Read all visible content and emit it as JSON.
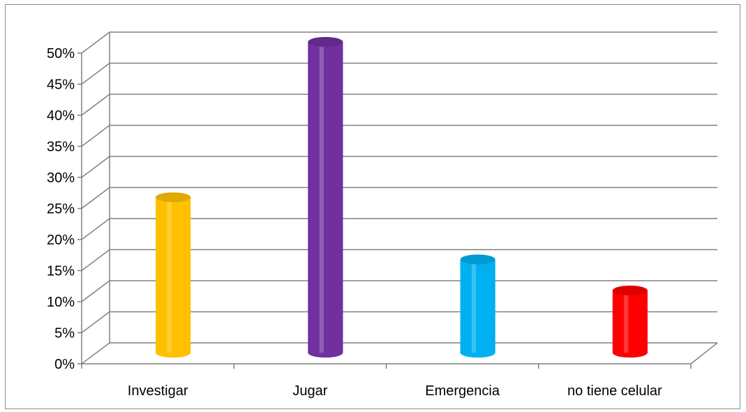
{
  "chart_data": {
    "type": "bar",
    "style": "3d-cylinder",
    "title": "",
    "xlabel": "",
    "ylabel": "",
    "categories": [
      "Investigar",
      "Jugar",
      "Emergencia",
      "no tiene celular"
    ],
    "values": [
      25,
      50,
      15,
      10
    ],
    "unit": "%",
    "ylim": [
      0,
      50
    ],
    "yticks": [
      "0%",
      "5%",
      "10%",
      "15%",
      "20%",
      "25%",
      "30%",
      "35%",
      "40%",
      "45%",
      "50%"
    ],
    "grid": true,
    "legend": "none",
    "colors": [
      "#ffc000",
      "#7030a0",
      "#00b0f0",
      "#ff0000"
    ],
    "grid_color": "#808080"
  }
}
